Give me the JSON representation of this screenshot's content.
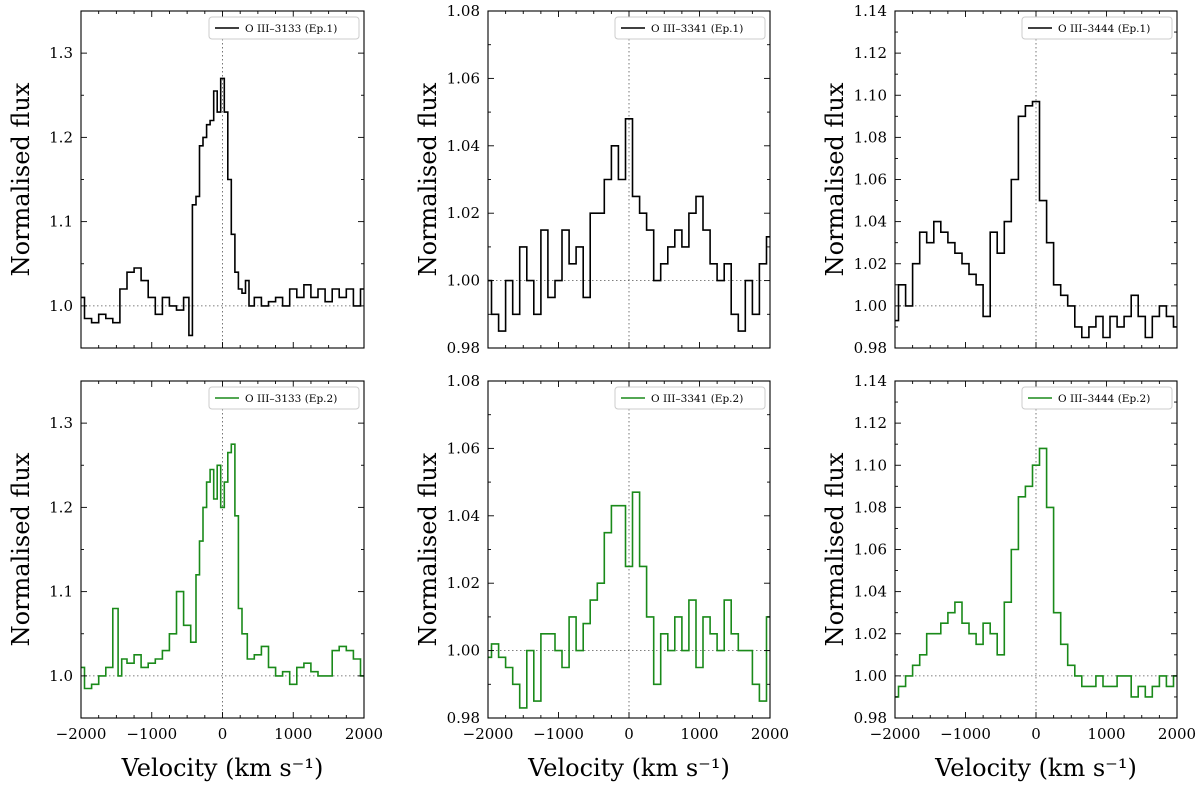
{
  "chart_data": [
    {
      "type": "line",
      "panel": "top-left",
      "color": "#000000",
      "legend": "O III–3133 (Ep.1)",
      "legend_position": "top-right",
      "ylabel": "Normalised flux",
      "xlabel": "",
      "xlim": [
        -2000,
        2000
      ],
      "ylim": [
        0.95,
        1.35
      ],
      "xticks": [
        -2000,
        -1000,
        0,
        1000,
        2000
      ],
      "xtick_labels": [],
      "yticks": [
        1.0,
        1.1,
        1.2,
        1.3
      ],
      "ytick_labels": [
        "1.0",
        "1.1",
        "1.2",
        "1.3"
      ],
      "ref_lines": {
        "x": 0,
        "y": 1.0
      },
      "x": [
        -2000,
        -1900,
        -1800,
        -1700,
        -1600,
        -1500,
        -1400,
        -1300,
        -1200,
        -1100,
        -1000,
        -900,
        -800,
        -700,
        -600,
        -500,
        -450,
        -400,
        -350,
        -300,
        -250,
        -200,
        -150,
        -100,
        -50,
        0,
        50,
        100,
        150,
        200,
        250,
        300,
        350,
        400,
        500,
        600,
        700,
        800,
        900,
        1000,
        1100,
        1200,
        1300,
        1400,
        1500,
        1600,
        1700,
        1800,
        1900,
        2000
      ],
      "y": [
        1.01,
        0.985,
        0.98,
        0.99,
        0.985,
        0.98,
        1.02,
        1.04,
        1.045,
        1.03,
        1.01,
        0.99,
        1.01,
        1.0,
        0.995,
        1.01,
        0.965,
        1.12,
        1.13,
        1.19,
        1.2,
        1.215,
        1.22,
        1.255,
        1.23,
        1.27,
        1.23,
        1.15,
        1.085,
        1.04,
        1.02,
        1.015,
        1.03,
        1.0,
        1.01,
        1.0,
        1.005,
        1.01,
        1.0,
        1.02,
        1.01,
        1.025,
        1.01,
        1.02,
        1.005,
        1.02,
        1.01,
        1.02,
        1.0,
        1.02
      ]
    },
    {
      "type": "line",
      "panel": "top-middle",
      "color": "#000000",
      "legend": "O III–3341 (Ep.1)",
      "legend_position": "top-right",
      "ylabel": "Normalised flux",
      "xlabel": "",
      "xlim": [
        -2000,
        2000
      ],
      "ylim": [
        0.98,
        1.08
      ],
      "xticks": [
        -2000,
        -1000,
        0,
        1000,
        2000
      ],
      "xtick_labels": [],
      "yticks": [
        0.98,
        1.0,
        1.02,
        1.04,
        1.06,
        1.08
      ],
      "ytick_labels": [
        "0.98",
        "1.00",
        "1.02",
        "1.04",
        "1.06",
        "1.08"
      ],
      "ref_lines": {
        "x": 0,
        "y": 1.0
      },
      "x": [
        -2000,
        -1900,
        -1800,
        -1700,
        -1600,
        -1500,
        -1400,
        -1300,
        -1200,
        -1100,
        -1000,
        -900,
        -800,
        -700,
        -600,
        -500,
        -400,
        -300,
        -200,
        -100,
        0,
        100,
        200,
        300,
        400,
        500,
        600,
        700,
        800,
        900,
        1000,
        1100,
        1200,
        1300,
        1400,
        1500,
        1600,
        1700,
        1800,
        1900,
        2000
      ],
      "y": [
        1.0,
        0.99,
        0.985,
        1.0,
        0.99,
        1.01,
        1.0,
        0.99,
        1.015,
        0.995,
        1.0,
        1.015,
        1.005,
        1.01,
        0.995,
        1.02,
        1.02,
        1.03,
        1.04,
        1.03,
        1.048,
        1.025,
        1.02,
        1.015,
        1.0,
        1.005,
        1.01,
        1.015,
        1.01,
        1.02,
        1.025,
        1.015,
        1.005,
        1.0,
        1.005,
        0.99,
        0.985,
        1.0,
        0.99,
        1.005,
        1.013
      ]
    },
    {
      "type": "line",
      "panel": "top-right",
      "color": "#000000",
      "legend": "O III–3444 (Ep.1)",
      "legend_position": "top-right",
      "ylabel": "Normalised flux",
      "xlabel": "",
      "xlim": [
        -2000,
        2000
      ],
      "ylim": [
        0.98,
        1.14
      ],
      "xticks": [
        -2000,
        -1000,
        0,
        1000,
        2000
      ],
      "xtick_labels": [],
      "yticks": [
        0.98,
        1.0,
        1.02,
        1.04,
        1.06,
        1.08,
        1.1,
        1.12,
        1.14
      ],
      "ytick_labels": [
        "0.98",
        "1.00",
        "1.02",
        "1.04",
        "1.06",
        "1.08",
        "1.10",
        "1.12",
        "1.14"
      ],
      "ref_lines": {
        "x": 0,
        "y": 1.0
      },
      "x": [
        -2000,
        -1900,
        -1800,
        -1700,
        -1600,
        -1500,
        -1400,
        -1300,
        -1200,
        -1100,
        -1000,
        -900,
        -800,
        -700,
        -600,
        -500,
        -400,
        -300,
        -200,
        -100,
        0,
        100,
        200,
        300,
        400,
        500,
        600,
        700,
        800,
        900,
        1000,
        1100,
        1200,
        1300,
        1400,
        1500,
        1600,
        1700,
        1800,
        1900,
        2000
      ],
      "y": [
        0.993,
        1.01,
        1.0,
        1.02,
        1.035,
        1.03,
        1.04,
        1.035,
        1.03,
        1.025,
        1.02,
        1.015,
        1.01,
        0.995,
        1.035,
        1.025,
        1.04,
        1.06,
        1.09,
        1.095,
        1.097,
        1.05,
        1.03,
        1.01,
        1.005,
        1.0,
        0.99,
        0.985,
        0.99,
        0.995,
        0.985,
        0.995,
        0.99,
        0.995,
        1.005,
        0.995,
        0.985,
        0.995,
        1.0,
        0.995,
        0.99
      ]
    },
    {
      "type": "line",
      "panel": "bottom-left",
      "color": "#1a8a1a",
      "legend": "O III–3133 (Ep.2)",
      "legend_position": "top-right",
      "ylabel": "Normalised flux",
      "xlabel": "Velocity (km s⁻¹)",
      "xlim": [
        -2000,
        2000
      ],
      "ylim": [
        0.95,
        1.35
      ],
      "xticks": [
        -2000,
        -1000,
        0,
        1000,
        2000
      ],
      "xtick_labels": [
        "−2000",
        "−1000",
        "0",
        "1000",
        "2000"
      ],
      "yticks": [
        1.0,
        1.1,
        1.2,
        1.3
      ],
      "ytick_labels": [
        "1.0",
        "1.1",
        "1.2",
        "1.3"
      ],
      "ref_lines": {
        "x": 0,
        "y": 1.0
      },
      "x": [
        -2000,
        -1900,
        -1800,
        -1700,
        -1600,
        -1500,
        -1450,
        -1400,
        -1300,
        -1200,
        -1100,
        -1000,
        -900,
        -800,
        -700,
        -600,
        -500,
        -400,
        -350,
        -300,
        -250,
        -200,
        -150,
        -100,
        -50,
        0,
        50,
        100,
        150,
        200,
        250,
        300,
        400,
        500,
        600,
        700,
        800,
        900,
        1000,
        1100,
        1200,
        1300,
        1400,
        1500,
        1600,
        1700,
        1800,
        1900,
        2000
      ],
      "y": [
        1.01,
        0.985,
        0.99,
        1.0,
        1.01,
        1.08,
        1.0,
        1.02,
        1.015,
        1.025,
        1.01,
        1.015,
        1.02,
        1.03,
        1.05,
        1.1,
        1.06,
        1.04,
        1.12,
        1.16,
        1.2,
        1.23,
        1.245,
        1.21,
        1.25,
        1.2,
        1.23,
        1.265,
        1.275,
        1.19,
        1.08,
        1.05,
        1.02,
        1.025,
        1.035,
        1.01,
        1.0,
        1.005,
        0.99,
        1.01,
        1.015,
        1.005,
        1.0,
        1.0,
        1.03,
        1.035,
        1.03,
        1.02,
        1.0
      ]
    },
    {
      "type": "line",
      "panel": "bottom-middle",
      "color": "#1a8a1a",
      "legend": "O III–3341 (Ep.2)",
      "legend_position": "top-right",
      "ylabel": "Normalised flux",
      "xlabel": "Velocity (km s⁻¹)",
      "xlim": [
        -2000,
        2000
      ],
      "ylim": [
        0.98,
        1.08
      ],
      "xticks": [
        -2000,
        -1000,
        0,
        1000,
        2000
      ],
      "xtick_labels": [
        "−2000",
        "−1000",
        "0",
        "1000",
        "2000"
      ],
      "yticks": [
        0.98,
        1.0,
        1.02,
        1.04,
        1.06,
        1.08
      ],
      "ytick_labels": [
        "0.98",
        "1.00",
        "1.02",
        "1.04",
        "1.06",
        "1.08"
      ],
      "ref_lines": {
        "x": 0,
        "y": 1.0
      },
      "x": [
        -2000,
        -1900,
        -1800,
        -1700,
        -1600,
        -1500,
        -1400,
        -1300,
        -1200,
        -1100,
        -1000,
        -900,
        -800,
        -700,
        -600,
        -500,
        -400,
        -300,
        -200,
        -100,
        0,
        100,
        200,
        300,
        400,
        500,
        600,
        700,
        800,
        900,
        1000,
        1100,
        1200,
        1300,
        1400,
        1500,
        1600,
        1700,
        1800,
        1900,
        2000
      ],
      "y": [
        0.998,
        1.002,
        0.998,
        0.995,
        0.99,
        0.983,
        1.0,
        0.985,
        1.005,
        1.005,
        1.0,
        0.995,
        1.01,
        1.0,
        1.008,
        1.015,
        1.02,
        1.035,
        1.043,
        1.043,
        1.025,
        1.047,
        1.025,
        1.01,
        0.99,
        1.005,
        1.0,
        1.01,
        1.0,
        1.015,
        0.995,
        1.01,
        1.005,
        1.0,
        1.015,
        1.005,
        1.0,
        1.0,
        0.99,
        0.985,
        1.01
      ]
    },
    {
      "type": "line",
      "panel": "bottom-right",
      "color": "#1a8a1a",
      "legend": "O III–3444 (Ep.2)",
      "legend_position": "top-right",
      "ylabel": "Normalised flux",
      "xlabel": "Velocity (km s⁻¹)",
      "xlim": [
        -2000,
        2000
      ],
      "ylim": [
        0.98,
        1.14
      ],
      "xticks": [
        -2000,
        -1000,
        0,
        1000,
        2000
      ],
      "xtick_labels": [
        "−2000",
        "−1000",
        "0",
        "1000",
        "2000"
      ],
      "yticks": [
        0.98,
        1.0,
        1.02,
        1.04,
        1.06,
        1.08,
        1.1,
        1.12,
        1.14
      ],
      "ytick_labels": [
        "0.98",
        "1.00",
        "1.02",
        "1.04",
        "1.06",
        "1.08",
        "1.10",
        "1.12",
        "1.14"
      ],
      "ref_lines": {
        "x": 0,
        "y": 1.0
      },
      "x": [
        -2000,
        -1900,
        -1800,
        -1700,
        -1600,
        -1500,
        -1400,
        -1300,
        -1200,
        -1100,
        -1000,
        -900,
        -800,
        -700,
        -600,
        -500,
        -400,
        -300,
        -200,
        -100,
        0,
        100,
        200,
        300,
        400,
        500,
        600,
        700,
        800,
        900,
        1000,
        1100,
        1200,
        1300,
        1400,
        1500,
        1600,
        1700,
        1800,
        1900,
        2000
      ],
      "y": [
        0.99,
        0.995,
        1.0,
        1.005,
        1.01,
        1.02,
        1.02,
        1.025,
        1.03,
        1.035,
        1.025,
        1.02,
        1.015,
        1.025,
        1.02,
        1.01,
        1.035,
        1.06,
        1.085,
        1.09,
        1.1,
        1.108,
        1.08,
        1.03,
        1.015,
        1.005,
        1.0,
        0.995,
        0.995,
        1.0,
        0.995,
        0.995,
        1.0,
        1.0,
        0.99,
        0.995,
        0.99,
        0.995,
        1.0,
        0.995,
        1.0
      ]
    }
  ]
}
